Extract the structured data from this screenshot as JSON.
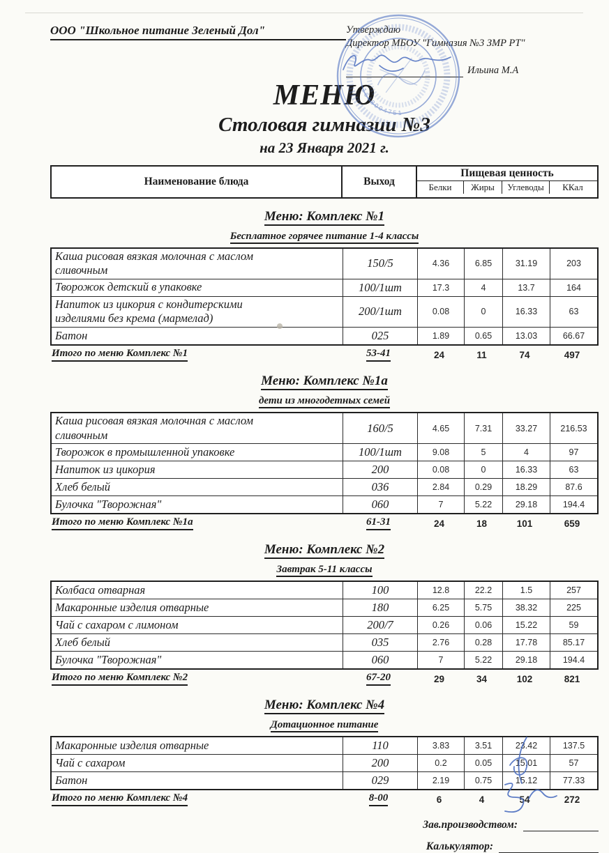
{
  "header": {
    "company": "ООО \"Школьное питание Зеленый Дол\"",
    "approval_line1": "Утверждаю",
    "approval_line2": "Директор МБОУ \"Гимназия №3 ЗМР РТ\"",
    "approver_name": "Ильина М.А",
    "stamp_number": "1648004751"
  },
  "title": "МЕНЮ",
  "subtitle": "Столовая гимназии №3",
  "date_line": "на 23 Января 2021 г.",
  "table_header": {
    "name": "Наименование блюда",
    "output": "Выход",
    "nutrition": "Пищевая ценность",
    "columns": [
      "Белки",
      "Жиры",
      "Углеводы",
      "ККал"
    ]
  },
  "sections": [
    {
      "menu_title": "Меню: Комплекс №1",
      "subtitle": "Бесплатное горячее питание  1-4 классы",
      "rows": [
        {
          "name": "Каша рисовая вязкая молочная с маслом сливочным",
          "output": "150/5",
          "protein": "4.36",
          "fat": "6.85",
          "carbs": "31.19",
          "kcal": "203"
        },
        {
          "name": "Творожок детский в упаковке",
          "output": "100/1шт",
          "protein": "17.3",
          "fat": "4",
          "carbs": "13.7",
          "kcal": "164"
        },
        {
          "name": "Напиток из цикория с кондитерскими изделиями без крема (мармелад)",
          "output": "200/1шт",
          "protein": "0.08",
          "fat": "0",
          "carbs": "16.33",
          "kcal": "63"
        },
        {
          "name": "Батон",
          "output": "025",
          "protein": "1.89",
          "fat": "0.65",
          "carbs": "13.03",
          "kcal": "66.67"
        }
      ],
      "total": {
        "label": "Итого по меню Комплекс №1",
        "output": "53-41",
        "protein": "24",
        "fat": "11",
        "carbs": "74",
        "kcal": "497"
      }
    },
    {
      "menu_title": "Меню: Комплекс №1а",
      "subtitle": "дети из многодетных семей",
      "rows": [
        {
          "name": "Каша рисовая вязкая молочная с маслом сливочным",
          "output": "160/5",
          "protein": "4.65",
          "fat": "7.31",
          "carbs": "33.27",
          "kcal": "216.53"
        },
        {
          "name": "Творожок  в промышленной упаковке",
          "output": "100/1шт",
          "protein": "9.08",
          "fat": "5",
          "carbs": "4",
          "kcal": "97"
        },
        {
          "name": "Напиток из цикория",
          "output": "200",
          "protein": "0.08",
          "fat": "0",
          "carbs": "16.33",
          "kcal": "63"
        },
        {
          "name": "Хлеб белый",
          "output": "036",
          "protein": "2.84",
          "fat": "0.29",
          "carbs": "18.29",
          "kcal": "87.6"
        },
        {
          "name": "Булочка \"Творожная\"",
          "output": "060",
          "protein": "7",
          "fat": "5.22",
          "carbs": "29.18",
          "kcal": "194.4"
        }
      ],
      "total": {
        "label": "Итого по меню Комплекс №1а",
        "output": "61-31",
        "protein": "24",
        "fat": "18",
        "carbs": "101",
        "kcal": "659"
      }
    },
    {
      "menu_title": "Меню: Комплекс №2",
      "subtitle": "Завтрак 5-11 классы",
      "rows": [
        {
          "name": "Колбаса отварная",
          "output": "100",
          "protein": "12.8",
          "fat": "22.2",
          "carbs": "1.5",
          "kcal": "257"
        },
        {
          "name": "Макаронные изделия отварные",
          "output": "180",
          "protein": "6.25",
          "fat": "5.75",
          "carbs": "38.32",
          "kcal": "225"
        },
        {
          "name": "Чай с сахаром с лимоном",
          "output": "200/7",
          "protein": "0.26",
          "fat": "0.06",
          "carbs": "15.22",
          "kcal": "59"
        },
        {
          "name": "Хлеб белый",
          "output": "035",
          "protein": "2.76",
          "fat": "0.28",
          "carbs": "17.78",
          "kcal": "85.17"
        },
        {
          "name": "Булочка \"Творожная\"",
          "output": "060",
          "protein": "7",
          "fat": "5.22",
          "carbs": "29.18",
          "kcal": "194.4"
        }
      ],
      "total": {
        "label": "Итого по меню Комплекс №2",
        "output": "67-20",
        "protein": "29",
        "fat": "34",
        "carbs": "102",
        "kcal": "821"
      }
    },
    {
      "menu_title": "Меню: Комплекс №4",
      "subtitle": "Дотационное питание",
      "rows": [
        {
          "name": "Макаронные изделия отварные",
          "output": "110",
          "protein": "3.83",
          "fat": "3.51",
          "carbs": "23.42",
          "kcal": "137.5"
        },
        {
          "name": "Чай с сахаром",
          "output": "200",
          "protein": "0.2",
          "fat": "0.05",
          "carbs": "15.01",
          "kcal": "57"
        },
        {
          "name": "Батон",
          "output": "029",
          "protein": "2.19",
          "fat": "0.75",
          "carbs": "15.12",
          "kcal": "77.33"
        }
      ],
      "total": {
        "label": "Итого по меню Комплекс №4",
        "output": "8-00",
        "protein": "6",
        "fat": "4",
        "carbs": "54",
        "kcal": "272"
      }
    }
  ],
  "footer": {
    "manager_label": "Зав.производством:",
    "calculator_label": "Калькулятор:"
  }
}
